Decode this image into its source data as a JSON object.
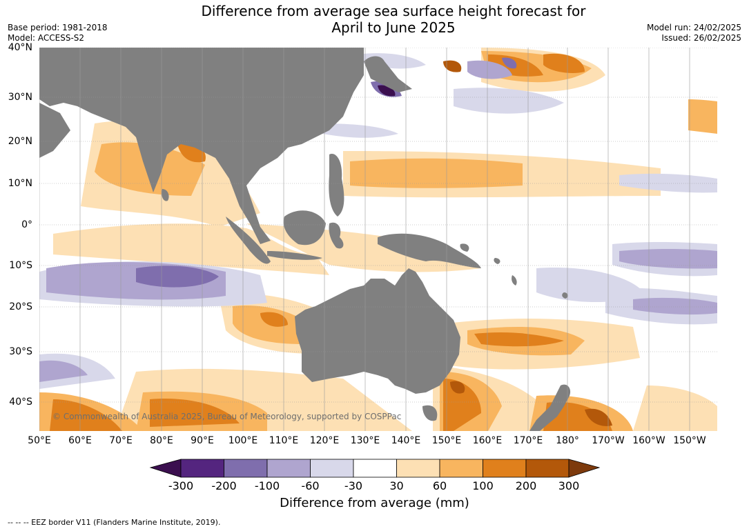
{
  "title": {
    "line1": "Difference from average sea surface height forecast for",
    "line2": "April to June 2025"
  },
  "meta_left": {
    "base_period": "Base period: 1981-2018",
    "model": "Model: ACCESS-S2"
  },
  "meta_right": {
    "model_run": "Model run: 24/02/2025",
    "issued": "Issued: 26/02/2025"
  },
  "map": {
    "lat_labels": [
      "40°N",
      "30°N",
      "20°N",
      "10°N",
      "0°",
      "10°S",
      "20°S",
      "30°S",
      "40°S"
    ],
    "lon_labels": [
      "50°E",
      "60°E",
      "70°E",
      "80°E",
      "90°E",
      "100°E",
      "110°E",
      "120°E",
      "130°E",
      "140°E",
      "150°E",
      "160°E",
      "170°E",
      "180°",
      "170°W",
      "160°W",
      "150°W"
    ],
    "land_color": "#808080",
    "grid": true,
    "copyright": "© Commonwealth of Australia 2025, Bureau of Meteorology, supported by COSPPac"
  },
  "legend": {
    "title": "Difference from average (mm)",
    "tick_labels": [
      "-300",
      "-200",
      "-100",
      "-60",
      "-30",
      "30",
      "60",
      "100",
      "200",
      "300"
    ],
    "colors": [
      "#3b0f4f",
      "#54257f",
      "#7f6ead",
      "#afa5cf",
      "#d8d8ea",
      "#ffffff",
      "#fde0b4",
      "#f8b55f",
      "#e0801c",
      "#b3580a",
      "#7d3a0c"
    ]
  },
  "footnote": "--  --  -- EEZ border V11 (Flanders Marine Institute, 2019)."
}
